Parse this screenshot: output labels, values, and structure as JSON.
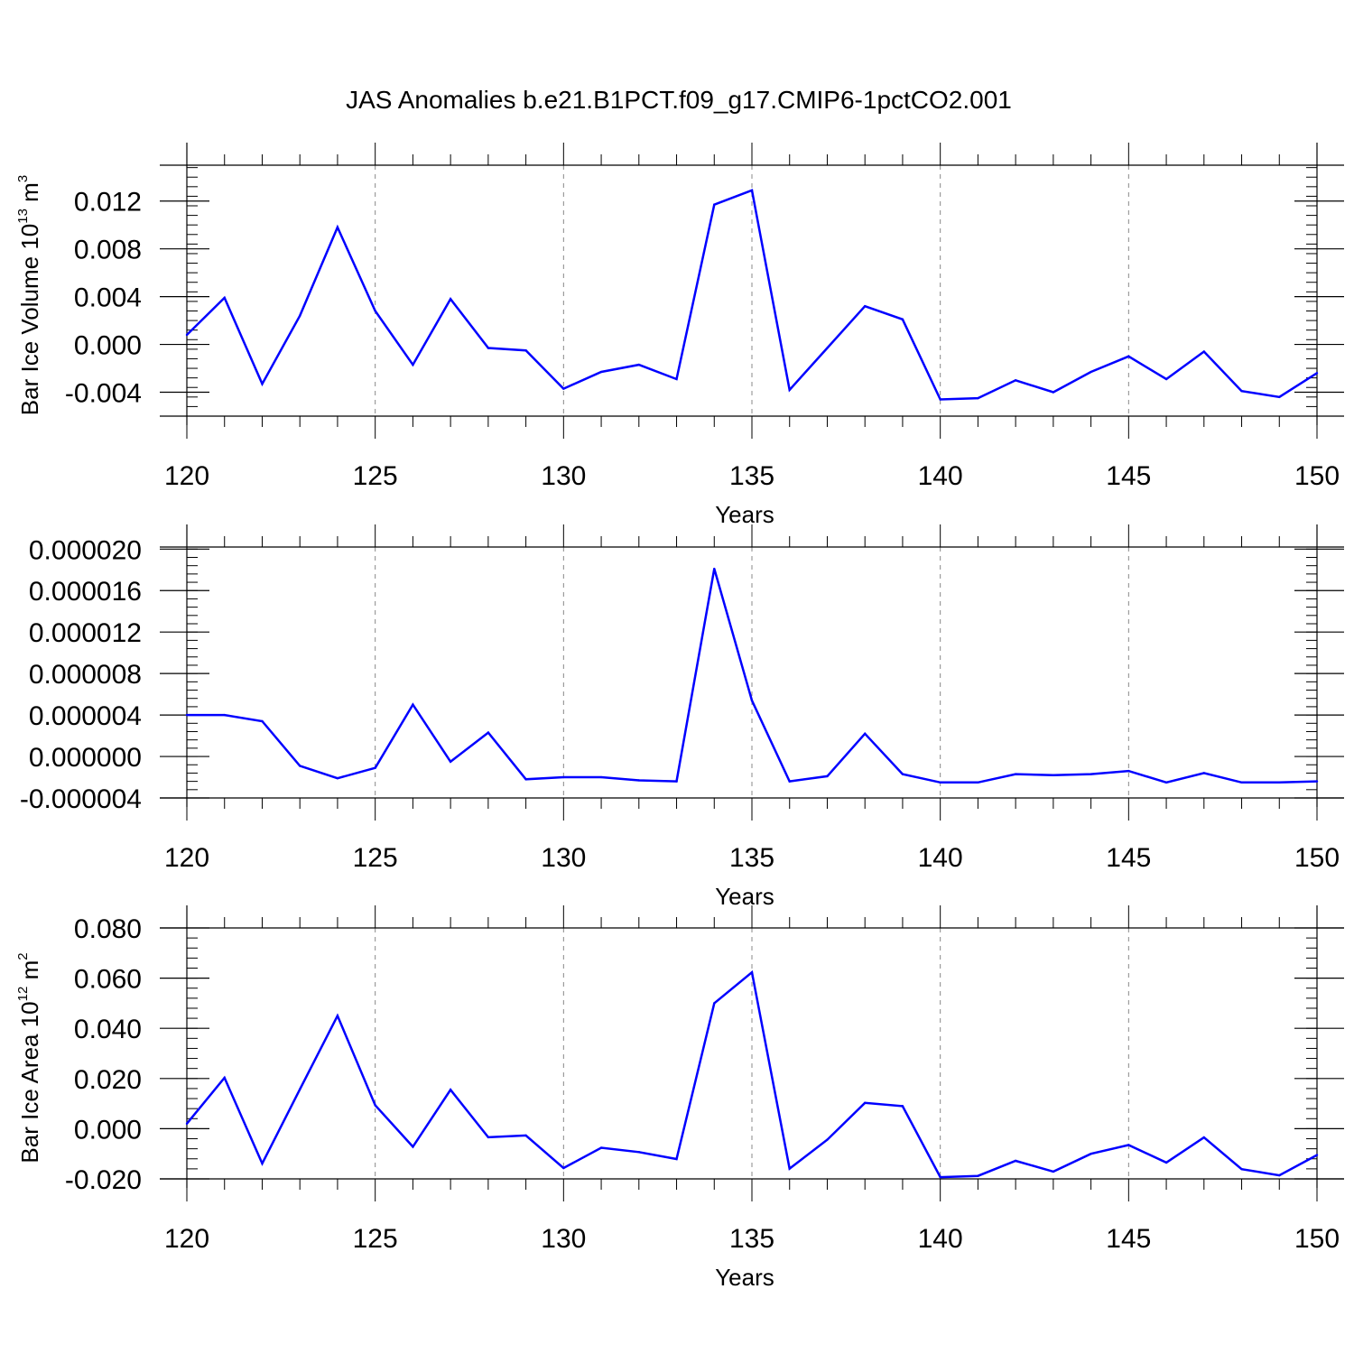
{
  "figure": {
    "title": "JAS Anomalies b.e21.B1PCT.f09_g17.CMIP6-1pctCO2.001",
    "series_color": "#0000ff"
  },
  "chart_data": [
    {
      "type": "line",
      "xlabel": "Years",
      "ylabel": {
        "text": "Bar Ice Volume 10",
        "exp": "13",
        "unit": " m",
        "unit_exp": "3"
      },
      "xlim": [
        120,
        150
      ],
      "ylim": [
        -0.006,
        0.015
      ],
      "grid": "dashed vertical lines at major x ticks",
      "x_ticks": [
        120,
        125,
        130,
        135,
        140,
        145,
        150
      ],
      "x_tick_labels": [
        "120",
        "125",
        "130",
        "135",
        "140",
        "145",
        "150"
      ],
      "y_ticks": [
        -0.004,
        0.0,
        0.004,
        0.008,
        0.012
      ],
      "y_tick_labels": [
        "-0.004",
        "0.000",
        "0.004",
        "0.008",
        "0.012"
      ],
      "x": [
        120,
        121,
        122,
        123,
        124,
        125,
        126,
        127,
        128,
        129,
        130,
        131,
        132,
        133,
        134,
        135,
        136,
        137,
        138,
        139,
        140,
        141,
        142,
        143,
        144,
        145,
        146,
        147,
        148,
        149,
        150
      ],
      "values": [
        0.0008,
        0.0039,
        -0.0033,
        0.0024,
        0.0098,
        0.0028,
        -0.0017,
        0.0038,
        -0.0003,
        -0.0005,
        -0.0037,
        -0.0023,
        -0.0017,
        -0.0029,
        0.0117,
        0.0129,
        -0.0038,
        -0.0003,
        0.0032,
        0.0021,
        -0.0046,
        -0.0045,
        -0.003,
        -0.004,
        -0.0023,
        -0.001,
        -0.0029,
        -0.0006,
        -0.0039,
        -0.0044,
        -0.0024
      ]
    },
    {
      "type": "line",
      "xlabel": "Years",
      "xlim": [
        120,
        150
      ],
      "ylim": [
        -4e-06,
        2.02e-05
      ],
      "grid": "dashed vertical lines at major x ticks",
      "x_ticks": [
        120,
        125,
        130,
        135,
        140,
        145,
        150
      ],
      "x_tick_labels": [
        "120",
        "125",
        "130",
        "135",
        "140",
        "145",
        "150"
      ],
      "y_ticks": [
        -4e-06,
        0.0,
        4e-06,
        8e-06,
        1.2e-05,
        1.6e-05,
        2e-05
      ],
      "y_tick_labels": [
        "-0.000004",
        "0.000000",
        "0.000004",
        "0.000008",
        "0.000012",
        "0.000016",
        "0.000020"
      ],
      "x": [
        120,
        121,
        122,
        123,
        124,
        125,
        126,
        127,
        128,
        129,
        130,
        131,
        132,
        133,
        134,
        135,
        136,
        137,
        138,
        139,
        140,
        141,
        142,
        143,
        144,
        145,
        146,
        147,
        148,
        149,
        150
      ],
      "values": [
        4e-06,
        4e-06,
        3.4e-06,
        -9e-07,
        -2.1e-06,
        -1.1e-06,
        5e-06,
        -5e-07,
        2.3e-06,
        -2.2e-06,
        -2e-06,
        -2e-06,
        -2.3e-06,
        -2.4e-06,
        1.81e-05,
        5.4e-06,
        -2.4e-06,
        -1.9e-06,
        2.2e-06,
        -1.7e-06,
        -2.5e-06,
        -2.5e-06,
        -1.7e-06,
        -1.8e-06,
        -1.7e-06,
        -1.4e-06,
        -2.5e-06,
        -1.6e-06,
        -2.5e-06,
        -2.5e-06,
        -2.4e-06
      ]
    },
    {
      "type": "line",
      "xlabel": "Years",
      "ylabel": {
        "text": "Bar Ice Area 10",
        "exp": "12",
        "unit": " m",
        "unit_exp": "2"
      },
      "xlim": [
        120,
        150
      ],
      "ylim": [
        -0.02,
        0.08
      ],
      "grid": "dashed vertical lines at major x ticks",
      "x_ticks": [
        120,
        125,
        130,
        135,
        140,
        145,
        150
      ],
      "x_tick_labels": [
        "120",
        "125",
        "130",
        "135",
        "140",
        "145",
        "150"
      ],
      "y_ticks": [
        -0.02,
        0.0,
        0.02,
        0.04,
        0.06,
        0.08
      ],
      "y_tick_labels": [
        "-0.020",
        "0.000",
        "0.020",
        "0.040",
        "0.060",
        "0.080"
      ],
      "x": [
        120,
        121,
        122,
        123,
        124,
        125,
        126,
        127,
        128,
        129,
        130,
        131,
        132,
        133,
        134,
        135,
        136,
        137,
        138,
        139,
        140,
        141,
        142,
        143,
        144,
        145,
        146,
        147,
        148,
        149,
        150
      ],
      "values": [
        0.002,
        0.0203,
        -0.0139,
        0.0157,
        0.045,
        0.0093,
        -0.0072,
        0.0155,
        -0.0034,
        -0.0027,
        -0.0157,
        -0.0076,
        -0.0093,
        -0.0121,
        0.05,
        0.0623,
        -0.0159,
        -0.0044,
        0.0103,
        0.009,
        -0.0193,
        -0.0188,
        -0.0128,
        -0.0171,
        -0.01,
        -0.0065,
        -0.0135,
        -0.0035,
        -0.0161,
        -0.0186,
        -0.0105
      ]
    }
  ]
}
